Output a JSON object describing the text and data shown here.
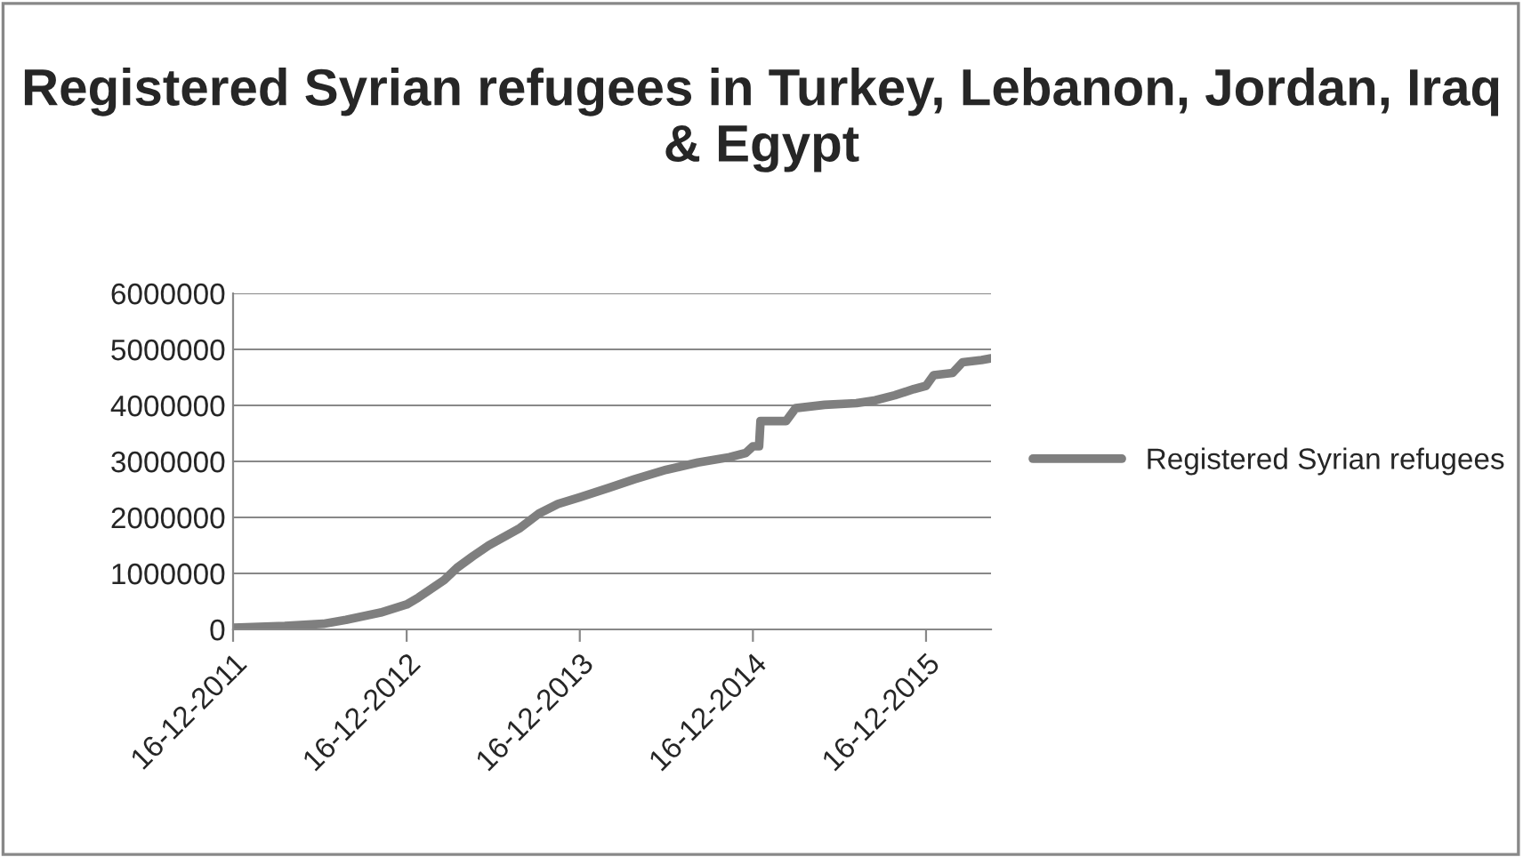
{
  "chart_data": {
    "type": "line",
    "title": "Registered Syrian refugees in Turkey, Lebanon, Jordan, Iraq & Egypt",
    "x": [
      "2011-12-16",
      "2012-04-03",
      "2012-06-23",
      "2012-08-10",
      "2012-10-22",
      "2012-12-16",
      "2013-01-10",
      "2013-03-05",
      "2013-04-01",
      "2013-05-05",
      "2013-06-07",
      "2013-08-12",
      "2013-09-21",
      "2013-10-31",
      "2013-12-16",
      "2014-02-16",
      "2014-04-10",
      "2014-06-16",
      "2014-08-22",
      "2014-10-28",
      "2014-12-01",
      "2014-12-16",
      "2014-12-29",
      "2015-01-01",
      "2015-02-24",
      "2015-03-16",
      "2015-05-16",
      "2015-07-22",
      "2015-08-31",
      "2015-10-11",
      "2015-11-20",
      "2015-12-16",
      "2016-01-01",
      "2016-02-10",
      "2016-03-02",
      "2016-04-11",
      "2016-05-01"
    ],
    "series": [
      {
        "name": "Registered Syrian refugees",
        "color": "#7f7f7f",
        "values": [
          30000,
          60000,
          100000,
          170000,
          300000,
          445000,
          570000,
          880000,
          1100000,
          1310000,
          1500000,
          1810000,
          2070000,
          2240000,
          2360000,
          2530000,
          2680000,
          2850000,
          2980000,
          3075000,
          3150000,
          3270000,
          3270000,
          3720000,
          3720000,
          3950000,
          4010000,
          4040000,
          4090000,
          4180000,
          4290000,
          4350000,
          4540000,
          4580000,
          4770000,
          4810000,
          4840000
        ]
      }
    ],
    "xlim": [
      "2011-12-16",
      "2016-05-01"
    ],
    "xticks": [
      {
        "value": "2011-12-16",
        "label": "16-12-2011"
      },
      {
        "value": "2012-12-16",
        "label": "16-12-2012"
      },
      {
        "value": "2013-12-16",
        "label": "16-12-2013"
      },
      {
        "value": "2014-12-16",
        "label": "16-12-2014"
      },
      {
        "value": "2015-12-16",
        "label": "16-12-2015"
      }
    ],
    "ylim": [
      0,
      6000000
    ],
    "yticks": [
      0,
      1000000,
      2000000,
      3000000,
      4000000,
      5000000,
      6000000
    ],
    "grid": "y",
    "legend": "right",
    "marker": "none",
    "line_style": "solid"
  }
}
